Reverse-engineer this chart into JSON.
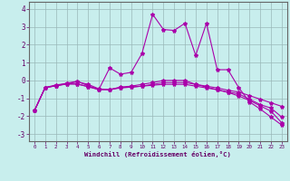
{
  "title": "",
  "xlabel": "Windchill (Refroidissement éolien,°C)",
  "ylabel": "",
  "xlim": [
    -0.5,
    23.5
  ],
  "ylim": [
    -3.4,
    4.4
  ],
  "xticks": [
    0,
    1,
    2,
    3,
    4,
    5,
    6,
    7,
    8,
    9,
    10,
    11,
    12,
    13,
    14,
    15,
    16,
    17,
    18,
    19,
    20,
    21,
    22,
    23
  ],
  "yticks": [
    -3,
    -2,
    -1,
    0,
    1,
    2,
    3,
    4
  ],
  "bg_color": "#c8eeed",
  "grid_color": "#9ab8b8",
  "line_color": "#aa00aa",
  "curves": [
    {
      "x": [
        0,
        1,
        2,
        3,
        4,
        5,
        6,
        7,
        8,
        9,
        10,
        11,
        12,
        13,
        14,
        15,
        16,
        17,
        18,
        19,
        20,
        21,
        22,
        23
      ],
      "y": [
        -1.7,
        -0.4,
        -0.3,
        -0.15,
        -0.05,
        -0.3,
        -0.5,
        0.7,
        0.35,
        0.45,
        1.5,
        3.7,
        2.85,
        2.8,
        3.2,
        1.4,
        3.2,
        0.6,
        0.6,
        -0.4,
        -1.2,
        -1.6,
        -2.05,
        -2.5
      ]
    },
    {
      "x": [
        0,
        1,
        2,
        3,
        4,
        5,
        6,
        7,
        8,
        9,
        10,
        11,
        12,
        13,
        14,
        15,
        16,
        17,
        18,
        19,
        20,
        21,
        22,
        23
      ],
      "y": [
        -1.7,
        -0.4,
        -0.3,
        -0.2,
        -0.2,
        -0.35,
        -0.5,
        -0.5,
        -0.4,
        -0.38,
        -0.32,
        -0.22,
        -0.12,
        -0.12,
        -0.12,
        -0.22,
        -0.32,
        -0.42,
        -0.55,
        -0.65,
        -0.85,
        -1.05,
        -1.25,
        -1.45
      ]
    },
    {
      "x": [
        0,
        1,
        2,
        3,
        4,
        5,
        6,
        7,
        8,
        9,
        10,
        11,
        12,
        13,
        14,
        15,
        16,
        17,
        18,
        19,
        20,
        21,
        22,
        23
      ],
      "y": [
        -1.7,
        -0.4,
        -0.3,
        -0.2,
        -0.2,
        -0.35,
        -0.52,
        -0.52,
        -0.42,
        -0.37,
        -0.32,
        -0.27,
        -0.22,
        -0.22,
        -0.22,
        -0.32,
        -0.42,
        -0.52,
        -0.65,
        -0.75,
        -1.05,
        -1.35,
        -1.55,
        -2.05
      ]
    },
    {
      "x": [
        0,
        1,
        2,
        3,
        4,
        5,
        6,
        7,
        8,
        9,
        10,
        11,
        12,
        13,
        14,
        15,
        16,
        17,
        18,
        19,
        20,
        21,
        22,
        23
      ],
      "y": [
        -1.7,
        -0.4,
        -0.25,
        -0.18,
        -0.08,
        -0.22,
        -0.47,
        -0.52,
        -0.37,
        -0.32,
        -0.22,
        -0.12,
        0.0,
        0.0,
        0.0,
        -0.22,
        -0.37,
        -0.52,
        -0.67,
        -0.87,
        -1.12,
        -1.42,
        -1.72,
        -2.37
      ]
    }
  ]
}
